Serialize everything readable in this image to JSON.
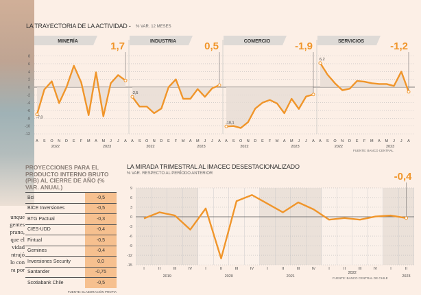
{
  "top": {
    "title": "LA TRAYECTORIA DE LA ACTIVIDAD -",
    "subtitle": "% VAR. 12 MESES",
    "source": "FUENTE: BANCO CENTRAL"
  },
  "bottom": {
    "title": "LA MIRADA TRIMESTRAL AL IMACEC DESESTACIONALIZADO",
    "subtitle": "% VAR. RESPECTO AL PERÍODO ANTERIOR",
    "source": "FUENTE: BANCO CENTRAL DE CHILE"
  },
  "table": {
    "title": "PROYECCIONES PARA EL PRODUCTO INTERNO BRUTO (PIB) AL CIERRE DE AÑO (% VAR. ANUAL)",
    "source": "FUENTE: ELABORACIÓN PROPIA",
    "rows": [
      [
        "Bci",
        "-0,5"
      ],
      [
        "BICE Inversiones",
        "-0,5"
      ],
      [
        "BTG Pactual",
        "-0,3"
      ],
      [
        "CIES-UDD",
        "-0,4"
      ],
      [
        "Fintual",
        "-0,5"
      ],
      [
        "Gemines",
        "-0,4"
      ],
      [
        "Inversiones Security",
        "0,0"
      ],
      [
        "Santander",
        "-0,75"
      ],
      [
        "Scotiabank Chile",
        "-0,5"
      ]
    ]
  },
  "article_fragments": [
    "unque",
    "gentes",
    "prano,",
    "que el",
    "vidad",
    "ntrajó",
    "lo con",
    "ra por"
  ],
  "colors": {
    "line": "#f0952a",
    "accent_text": "#f0952a",
    "background": "#fcefe6",
    "shade": "#e6dcd4",
    "table_value_bg": "#f6c08f"
  },
  "chart_data": [
    {
      "type": "line",
      "title": "LA TRAYECTORIA DE LA ACTIVIDAD",
      "ylabel": "% VAR. 12 MESES",
      "ylim": [
        -12,
        8
      ],
      "yticks": [
        8,
        6,
        4,
        2,
        0,
        -2,
        -4,
        -6,
        -8,
        -10,
        -12
      ],
      "grid": true,
      "months": [
        "A",
        "S",
        "O",
        "N",
        "D",
        "E",
        "F",
        "M",
        "A",
        "M",
        "J",
        "J",
        "A"
      ],
      "years": [
        "2022",
        "2023"
      ],
      "series": [
        {
          "name": "MINERÍA",
          "last_label": "1,7",
          "first_label": "-7,0",
          "values": [
            -7.0,
            -0.6,
            1.5,
            -4.1,
            0,
            5.5,
            1.2,
            -7.2,
            3.8,
            -7.5,
            1.0,
            3.1,
            1.7
          ]
        },
        {
          "name": "INDUSTRIA",
          "last_label": "0,5",
          "first_label": "-2,5",
          "values": [
            -2.5,
            -5.0,
            -5.0,
            -6.7,
            -5.5,
            0,
            2.0,
            -3.0,
            -3.0,
            -0.5,
            -2.5,
            -0.3,
            0.5
          ]
        },
        {
          "name": "COMERCIO",
          "last_label": "-1,9",
          "first_label": "-10,1",
          "values": [
            -10.1,
            -10.0,
            -10.5,
            -9.0,
            -5.5,
            -4.0,
            -3.3,
            -4.2,
            -6.7,
            -3.0,
            -5.6,
            -2.4,
            -1.9
          ]
        },
        {
          "name": "SERVICIOS",
          "last_label": "-1,2",
          "first_label": "6,2",
          "values": [
            6.2,
            3.2,
            1.0,
            -0.8,
            -0.4,
            1.6,
            1.4,
            1.0,
            0.8,
            0.8,
            0.3,
            4.0,
            -1.2
          ]
        }
      ]
    },
    {
      "type": "line",
      "title": "LA MIRADA TRIMESTRAL AL IMACEC DESESTACIONALIZADO",
      "ylabel": "% VAR. RESPECTO AL PERÍODO ANTERIOR",
      "ylim": [
        -15,
        9
      ],
      "yticks": [
        9,
        6,
        3,
        0,
        -3,
        -6,
        -9,
        -12,
        -15
      ],
      "grid": true,
      "quarters": [
        "I",
        "II",
        "III",
        "IV",
        "I",
        "II",
        "III",
        "IV",
        "I",
        "II",
        "III",
        "IV",
        "I",
        "II",
        "III",
        "IV",
        "I",
        "II"
      ],
      "years": [
        "2019",
        "2020",
        "2021",
        "2022",
        "2023"
      ],
      "last_label": "-0,4",
      "values": [
        -0.5,
        1.4,
        0.4,
        -4.0,
        2.6,
        -13.0,
        4.9,
        6.8,
        4.1,
        1.4,
        4.5,
        2.3,
        -0.9,
        -0.4,
        -0.9,
        0.1,
        0.4,
        -0.4
      ]
    }
  ]
}
